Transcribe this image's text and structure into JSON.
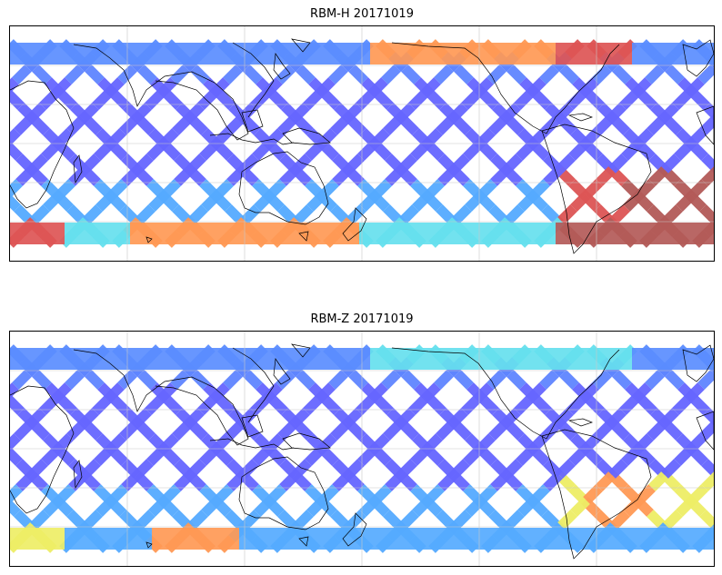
{
  "panels": [
    {
      "title": "RBM-H 20171019",
      "colormap": "jet",
      "colors": {
        "high_south_atlantic": "#b35a58",
        "band_low": "#6666ff",
        "band_mid": "#55aaff",
        "band_cyan": "#66e0ee",
        "band_yellow": "#eeee66",
        "band_orange": "#ff9955",
        "band_red": "#dd5555"
      }
    },
    {
      "title": "RBM-Z 20171019",
      "colormap": "jet",
      "colors": {
        "band_low": "#6666ff",
        "band_mid": "#55aaff",
        "band_cyan": "#66e0ee",
        "band_yellow": "#eeee66",
        "band_orange": "#ff9955",
        "band_red": "#ee6655"
      }
    }
  ],
  "map": {
    "projection": "equirectangular",
    "central_longitude": 180,
    "gridlines": true,
    "coastlines": true,
    "colorbar": false
  }
}
